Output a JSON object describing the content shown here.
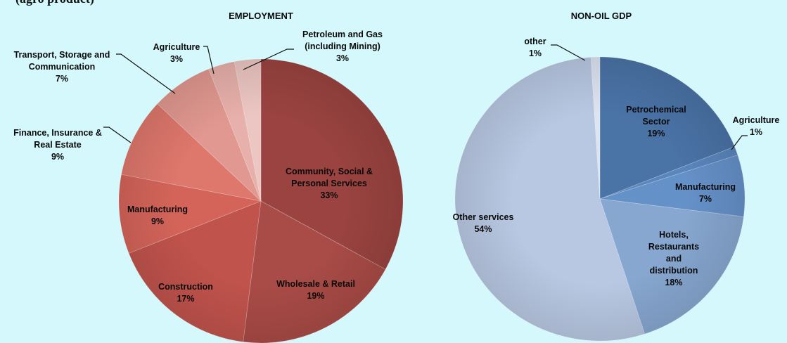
{
  "page": {
    "top_fragment": "(agro product)",
    "background": "#d4f8fb"
  },
  "chart_data": [
    {
      "type": "pie",
      "title": "EMPLOYMENT",
      "start_angle_deg": 0,
      "slices": [
        {
          "label": "Community, Social & Personal Services",
          "value": 33,
          "display": "33%",
          "color": "#9a4340",
          "lines": [
            "Community, Social &",
            "Personal Services",
            "33%"
          ]
        },
        {
          "label": "Wholesale & Retail",
          "value": 19,
          "display": "19%",
          "color": "#a94b46",
          "lines": [
            "Wholesale & Retail",
            "19%"
          ]
        },
        {
          "label": "Construction",
          "value": 17,
          "display": "17%",
          "color": "#c0534c",
          "lines": [
            "Construction",
            "17%"
          ]
        },
        {
          "label": "Manufacturing",
          "value": 9,
          "display": "9%",
          "color": "#d4645a",
          "lines": [
            "Manufacturing",
            "9%"
          ]
        },
        {
          "label": "Finance, Insurance & Real Estate",
          "value": 9,
          "display": "9%",
          "color": "#de776c",
          "lines": [
            "Finance, Insurance &",
            "Real Estate",
            "9%"
          ]
        },
        {
          "label": "Transport, Storage and Communication",
          "value": 7,
          "display": "7%",
          "color": "#e19890",
          "lines": [
            "Transport, Storage and",
            "Communication",
            "7%"
          ]
        },
        {
          "label": "Agriculture",
          "value": 3,
          "display": "3%",
          "color": "#e8b0aa",
          "lines": [
            "Agriculture",
            "3%"
          ]
        },
        {
          "label": "Petroleum and Gas (including Mining)",
          "value": 3,
          "display": "3%",
          "color": "#ecc6c2",
          "lines": [
            "Petroleum and Gas",
            "(including Mining)",
            "3%"
          ]
        }
      ]
    },
    {
      "type": "pie",
      "title": "NON-OIL GDP",
      "start_angle_deg": 0,
      "slices": [
        {
          "label": "Petrochemical Sector",
          "value": 19,
          "display": "19%",
          "color": "#4a73a6",
          "lines": [
            "Petrochemical",
            "Sector",
            "19%"
          ]
        },
        {
          "label": "Agriculture",
          "value": 1,
          "display": "1%",
          "color": "#5a86bd",
          "lines": [
            "Agriculture",
            "1%"
          ]
        },
        {
          "label": "Manufacturing",
          "value": 7,
          "display": "7%",
          "color": "#6591c9",
          "lines": [
            "Manufacturing",
            "7%"
          ]
        },
        {
          "label": "Hotels, Restaurants and distribution",
          "value": 18,
          "display": "18%",
          "color": "#87a7d0",
          "lines": [
            "Hotels,",
            "Restaurants",
            "and",
            "distribution",
            "18%"
          ]
        },
        {
          "label": "Other services",
          "value": 54,
          "display": "54%",
          "color": "#b8c8e2",
          "lines": [
            "Other services",
            "54%"
          ]
        },
        {
          "label": "other",
          "value": 1,
          "display": "1%",
          "color": "#dde4f0",
          "lines": [
            "other",
            "1%"
          ]
        }
      ]
    }
  ]
}
